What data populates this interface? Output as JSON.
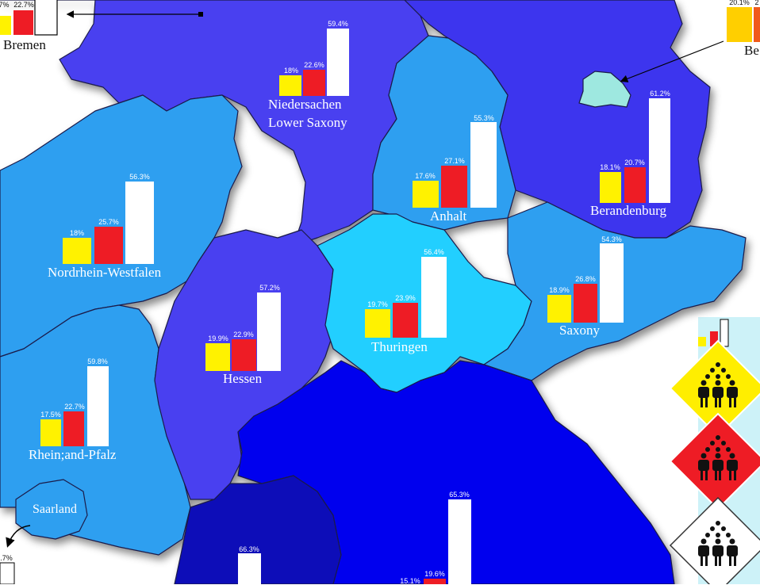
{
  "colors": {
    "sea": "#ffffff",
    "state_blue": "#2e9ff0",
    "state_purple": "#4a40f0",
    "thuringia": "#22cfff",
    "bavaria": "#0000ee",
    "bw": "#0a0ab8",
    "berlin": "#9ee8e0",
    "bar_yellow": "#fff200",
    "bar_red": "#ee1c25",
    "bar_white": "#ffffff"
  },
  "legend": {
    "icons": [
      "people-group-icon",
      "people-group-icon",
      "people-group-icon"
    ],
    "diamond_colors": [
      "#ffee00",
      "#ee1c25",
      "#ffffff"
    ]
  },
  "states": [
    {
      "id": "bremen",
      "label": "Bremen",
      "values": [
        "7%",
        "22.7%"
      ]
    },
    {
      "id": "berlin",
      "label": "Be",
      "values": [
        "20.1%",
        "2"
      ]
    },
    {
      "id": "niedersachsen",
      "label": "Niedersachen",
      "label2": "Lower Saxony",
      "values": [
        "18%",
        "22.6%",
        "59.4%"
      ]
    },
    {
      "id": "anhalt",
      "label": "Anhalt",
      "values": [
        "17.6%",
        "27.1%",
        "55.3%"
      ]
    },
    {
      "id": "brandenburg",
      "label": "Berandenburg",
      "values": [
        "18.1%",
        "20.7%",
        "61.2%"
      ]
    },
    {
      "id": "nrw",
      "label": "Nordrhein-Westfalen",
      "values": [
        "18%",
        "25.7%",
        "56.3%"
      ]
    },
    {
      "id": "hessen",
      "label": "Hessen",
      "values": [
        "19.9%",
        "22.9%",
        "57.2%"
      ]
    },
    {
      "id": "thuringen",
      "label": "Thuringen",
      "values": [
        "19.7%",
        "23.9%",
        "56.4%"
      ]
    },
    {
      "id": "saxony",
      "label": "Saxony",
      "values": [
        "18.9%",
        "26.8%",
        "54.3%"
      ]
    },
    {
      "id": "rheinland",
      "label": "Rhein;and-Pfalz",
      "values": [
        "17.5%",
        "22.7%",
        "59.8%"
      ]
    },
    {
      "id": "saarland",
      "label": "Saarland",
      "values": [
        ".7%"
      ]
    },
    {
      "id": "bw",
      "label": "",
      "values": [
        "66.3%"
      ]
    },
    {
      "id": "bayern",
      "label": "",
      "values": [
        "15.1%",
        "19.6%",
        "65.3%"
      ]
    }
  ]
}
